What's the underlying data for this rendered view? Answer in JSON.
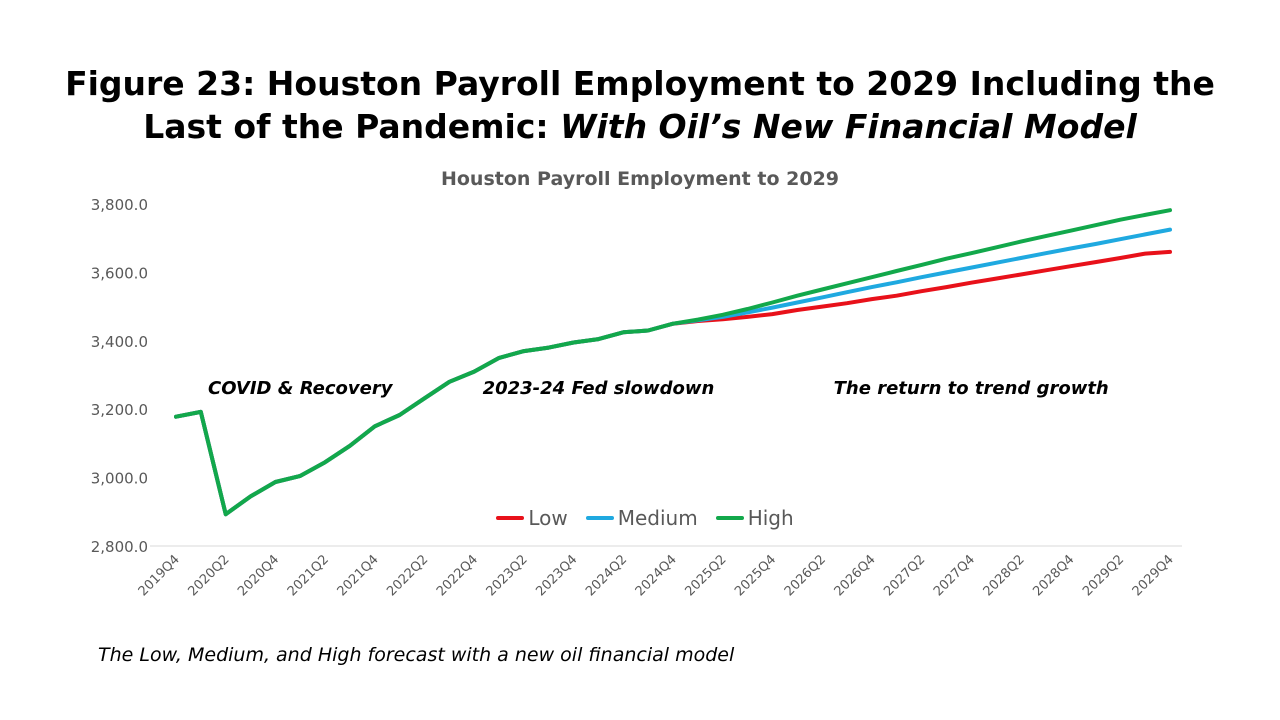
{
  "figure": {
    "title_line1": "Figure 23: Houston Payroll Employment to 2029 Including the",
    "title_line2_plain": "Last of the Pandemic: ",
    "title_line2_italic": "With Oil’s New Financial Model",
    "caption": "The Low, Medium, and High forecast with a new oil financial model"
  },
  "chart_data": {
    "type": "line",
    "title": "Houston Payroll Employment to 2029",
    "xlabel": "",
    "ylabel": "",
    "ylim": [
      2800,
      3800
    ],
    "yticks": [
      2800,
      3000,
      3200,
      3400,
      3600,
      3800
    ],
    "ytick_labels": [
      "2,800.0",
      "3,000.0",
      "3,200.0",
      "3,400.0",
      "3,600.0",
      "3,800.0"
    ],
    "grid": "horizontal baseline only",
    "legend_position": "bottom-center",
    "x": [
      "2019Q4",
      "2020Q1",
      "2020Q2",
      "2020Q3",
      "2020Q4",
      "2021Q1",
      "2021Q2",
      "2021Q3",
      "2021Q4",
      "2022Q1",
      "2022Q2",
      "2022Q3",
      "2022Q4",
      "2023Q1",
      "2023Q2",
      "2023Q3",
      "2023Q4",
      "2024Q1",
      "2024Q2",
      "2024Q3",
      "2024Q4",
      "2025Q1",
      "2025Q2",
      "2025Q3",
      "2025Q4",
      "2026Q1",
      "2026Q2",
      "2026Q3",
      "2026Q4",
      "2027Q1",
      "2027Q2",
      "2027Q3",
      "2027Q4",
      "2028Q1",
      "2028Q2",
      "2028Q3",
      "2028Q4",
      "2029Q1",
      "2029Q2",
      "2029Q3",
      "2029Q4"
    ],
    "xtick_labels": [
      "2019Q4",
      "2020Q2",
      "2020Q4",
      "2021Q2",
      "2021Q4",
      "2022Q2",
      "2022Q4",
      "2023Q2",
      "2023Q4",
      "2024Q2",
      "2024Q4",
      "2025Q2",
      "2025Q4",
      "2026Q2",
      "2026Q4",
      "2027Q2",
      "2027Q4",
      "2028Q2",
      "2028Q4",
      "2029Q2",
      "2029Q4"
    ],
    "series": [
      {
        "name": "Low",
        "color": "#e8111a",
        "values": [
          3178,
          3192,
          2893,
          2945,
          2987,
          3005,
          3045,
          3093,
          3150,
          3183,
          3232,
          3280,
          3310,
          3350,
          3370,
          3380,
          3395,
          3405,
          3425,
          3430,
          3450,
          3458,
          3463,
          3470,
          3478,
          3490,
          3500,
          3510,
          3522,
          3532,
          3545,
          3557,
          3570,
          3582,
          3594,
          3606,
          3618,
          3630,
          3642,
          3655,
          3660
        ]
      },
      {
        "name": "Medium",
        "color": "#1fa9e0",
        "values": [
          3178,
          3192,
          2893,
          2945,
          2987,
          3005,
          3045,
          3093,
          3150,
          3183,
          3232,
          3280,
          3310,
          3350,
          3370,
          3380,
          3395,
          3405,
          3425,
          3430,
          3450,
          3460,
          3470,
          3483,
          3497,
          3512,
          3527,
          3542,
          3557,
          3571,
          3586,
          3600,
          3614,
          3628,
          3642,
          3656,
          3670,
          3683,
          3697,
          3711,
          3725
        ]
      },
      {
        "name": "High",
        "color": "#12a84b",
        "values": [
          3178,
          3192,
          2893,
          2945,
          2987,
          3005,
          3045,
          3093,
          3150,
          3183,
          3232,
          3280,
          3310,
          3350,
          3370,
          3380,
          3395,
          3405,
          3425,
          3430,
          3450,
          3462,
          3476,
          3493,
          3512,
          3532,
          3550,
          3568,
          3586,
          3604,
          3622,
          3640,
          3656,
          3673,
          3690,
          3706,
          3722,
          3738,
          3754,
          3768,
          3782
        ]
      }
    ],
    "annotations": [
      {
        "text": "COVID & Recovery",
        "x": "2021Q1",
        "y": 3245
      },
      {
        "text": "2023-24 Fed slowdown",
        "x": "2024Q1",
        "y": 3245
      },
      {
        "text": "The return to trend growth",
        "x": "2027Q4",
        "y": 3245
      }
    ]
  }
}
